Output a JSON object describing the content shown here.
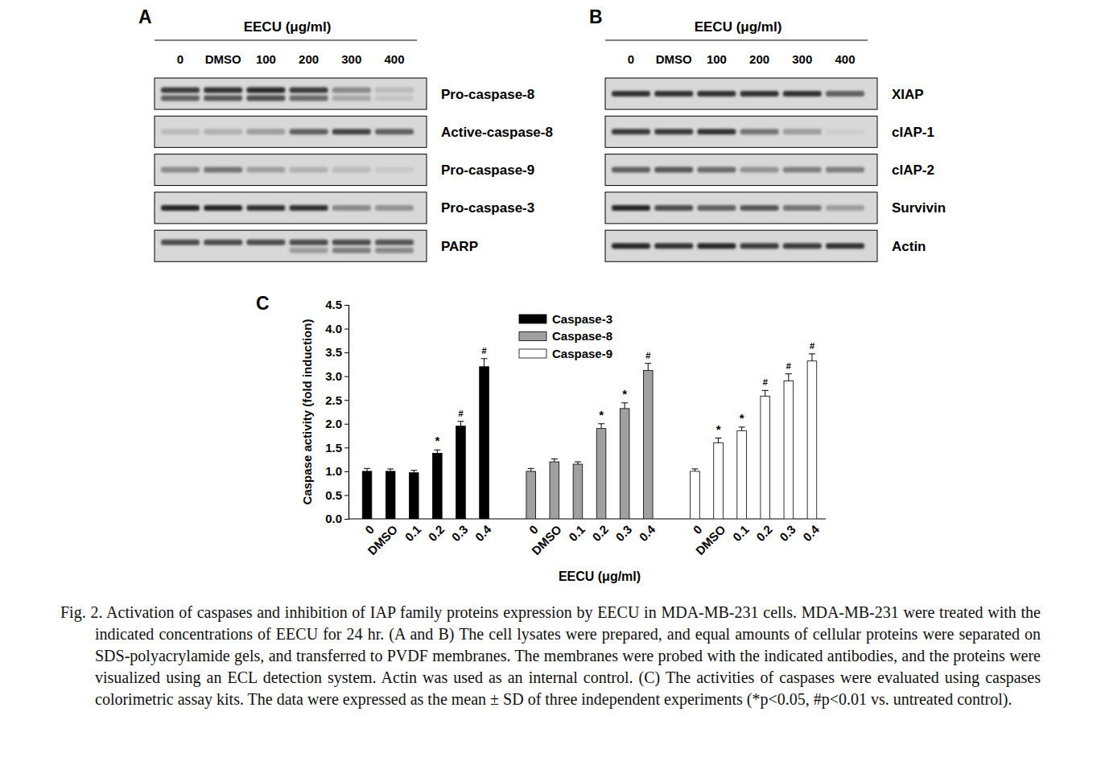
{
  "figure_label": "Fig. 2.",
  "caption": "Activation of caspases and inhibition of IAP family proteins expression by EECU in MDA-MB-231 cells. MDA-MB-231 were treated with the indicated concentrations of EECU for 24 hr. (A and B) The cell lysates were prepared, and equal amounts of cellular proteins were separated on SDS-polyacrylamide gels, and transferred to PVDF membranes. The membranes were probed with the indicated antibodies, and the proteins were visualized using an ECL detection system. Actin was used as an internal control. (C) The activities of caspases were evaluated using caspases colorimetric assay kits. The data were expressed as the mean ± SD of three independent experiments (*p<0.05, #p<0.01 vs. untreated control).",
  "blots": [
    {
      "panel": "A",
      "header": "EECU (μg/ml)",
      "lanes": [
        "0",
        "DMSO",
        "100",
        "200",
        "300",
        "400"
      ],
      "rows": [
        {
          "label": "Pro-caspase-8",
          "bands": [
            [
              0.8,
              0.85,
              0.9,
              0.8,
              0.4,
              0.15
            ],
            [
              0.6,
              0.65,
              0.7,
              0.55,
              0.25,
              0.1
            ]
          ]
        },
        {
          "label": "Active-caspase-8",
          "bands": [
            [
              0.15,
              0.2,
              0.3,
              0.6,
              0.75,
              0.6
            ]
          ]
        },
        {
          "label": "Pro-caspase-9",
          "bands": [
            [
              0.4,
              0.5,
              0.3,
              0.2,
              0.15,
              0.08
            ]
          ]
        },
        {
          "label": "Pro-caspase-3",
          "bands": [
            [
              0.9,
              0.9,
              0.85,
              0.85,
              0.4,
              0.35
            ]
          ]
        },
        {
          "label": "PARP",
          "bands": [
            [
              0.7,
              0.7,
              0.7,
              0.7,
              0.7,
              0.65
            ],
            [
              0.0,
              0.0,
              0.0,
              0.3,
              0.45,
              0.4
            ]
          ]
        }
      ]
    },
    {
      "panel": "B",
      "header": "EECU (μg/ml)",
      "lanes": [
        "0",
        "DMSO",
        "100",
        "200",
        "300",
        "400"
      ],
      "rows": [
        {
          "label": "XIAP",
          "bands": [
            [
              0.85,
              0.85,
              0.85,
              0.85,
              0.85,
              0.6
            ]
          ]
        },
        {
          "label": "cIAP-1",
          "bands": [
            [
              0.8,
              0.8,
              0.85,
              0.5,
              0.3,
              0.05
            ]
          ]
        },
        {
          "label": "cIAP-2",
          "bands": [
            [
              0.6,
              0.65,
              0.55,
              0.35,
              0.45,
              0.45
            ]
          ]
        },
        {
          "label": "Survivin",
          "bands": [
            [
              0.9,
              0.7,
              0.6,
              0.65,
              0.5,
              0.3
            ]
          ]
        },
        {
          "label": "Actin",
          "bands": [
            [
              0.9,
              0.85,
              0.9,
              0.8,
              0.8,
              0.85
            ]
          ]
        }
      ]
    }
  ],
  "chart_data": {
    "panel": "C",
    "type": "bar",
    "x_label": "EECU (μg/ml)",
    "y_label": "Caspase activity (fold induction)",
    "categories": [
      "0",
      "DMSO",
      "0.1",
      "0.2",
      "0.3",
      "0.4"
    ],
    "series": [
      {
        "name": "Caspase-3",
        "color": "#000000",
        "values": [
          1.0,
          1.0,
          0.97,
          1.38,
          1.95,
          3.2
        ],
        "errors": [
          0.06,
          0.05,
          0.05,
          0.07,
          0.1,
          0.17
        ],
        "annotations": [
          null,
          null,
          null,
          "*",
          "#",
          "#"
        ]
      },
      {
        "name": "Caspase-8",
        "color": "#a0a0a0",
        "values": [
          1.0,
          1.2,
          1.15,
          1.9,
          2.32,
          3.12
        ],
        "errors": [
          0.06,
          0.06,
          0.05,
          0.1,
          0.12,
          0.15
        ],
        "annotations": [
          null,
          null,
          null,
          "*",
          "*",
          "#"
        ]
      },
      {
        "name": "Caspase-9",
        "color": "#ffffff",
        "values": [
          1.0,
          1.6,
          1.85,
          2.58,
          2.9,
          3.32
        ],
        "errors": [
          0.05,
          0.1,
          0.08,
          0.12,
          0.15,
          0.15
        ],
        "annotations": [
          null,
          "*",
          "*",
          "#",
          "#",
          "#"
        ]
      }
    ],
    "ylim": [
      0,
      4.5
    ],
    "yticks": [
      {
        "value": 0,
        "label": "0.0"
      },
      0.5,
      {
        "value": 1,
        "label": "1.0"
      },
      1.5,
      {
        "value": 2,
        "label": "2.0"
      },
      2.5,
      {
        "value": 3,
        "label": "3.0"
      },
      3.5,
      {
        "value": 4,
        "label": "4.0"
      },
      4.5
    ],
    "legend": "top",
    "grid": false
  }
}
